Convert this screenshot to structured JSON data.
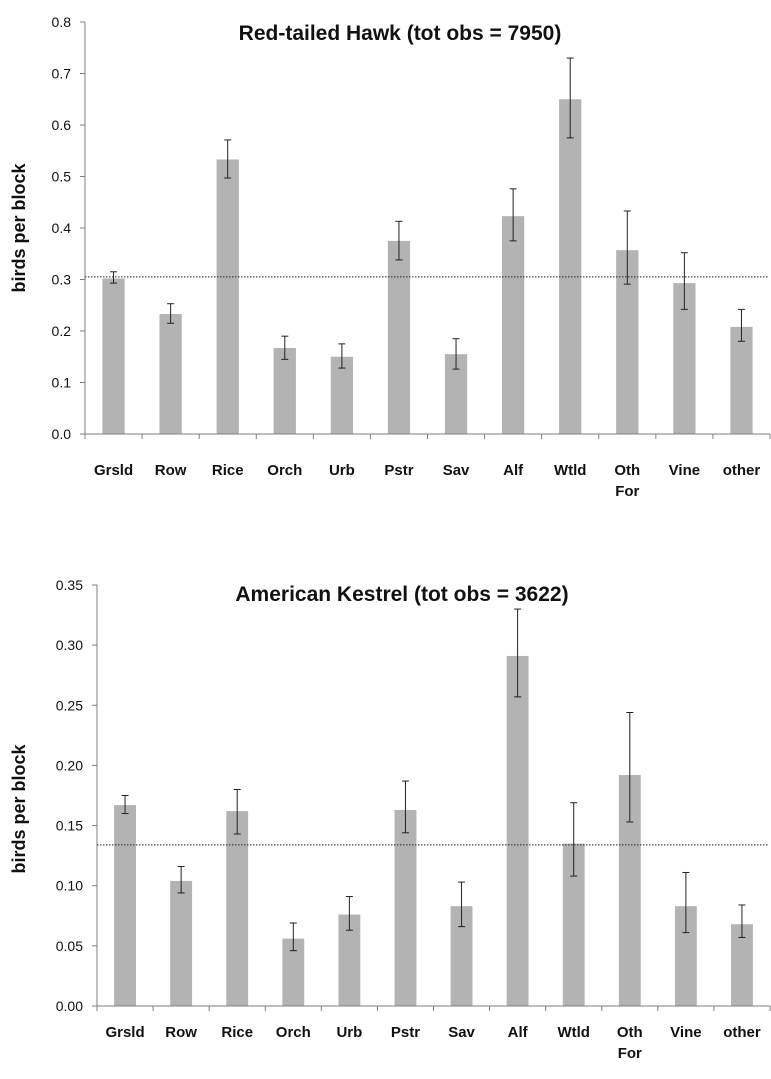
{
  "colors": {
    "bar": "#b3b3b3",
    "axis": "#7f7f7f",
    "errorbar": "#222222",
    "refline": "#222222",
    "text": "#111111"
  },
  "chart_data": [
    {
      "type": "bar",
      "title": "Red-tailed Hawk (tot obs = 7950)",
      "xlabel": "",
      "ylabel": "birds per block",
      "categories": [
        "Grsld",
        "Row",
        "Rice",
        "Orch",
        "Urb",
        "Pstr",
        "Sav",
        "Alf",
        "Wtld",
        "Oth For",
        "Vine",
        "other"
      ],
      "category_lines": [
        [
          "Grsld"
        ],
        [
          "Row"
        ],
        [
          "Rice"
        ],
        [
          "Orch"
        ],
        [
          "Urb"
        ],
        [
          "Pstr"
        ],
        [
          "Sav"
        ],
        [
          "Alf"
        ],
        [
          "Wtld"
        ],
        [
          "Oth",
          "For"
        ],
        [
          "Vine"
        ],
        [
          "other"
        ]
      ],
      "values": [
        0.302,
        0.233,
        0.533,
        0.167,
        0.15,
        0.375,
        0.155,
        0.423,
        0.65,
        0.357,
        0.293,
        0.208
      ],
      "error_low": [
        0.293,
        0.215,
        0.497,
        0.145,
        0.128,
        0.338,
        0.126,
        0.375,
        0.575,
        0.291,
        0.242,
        0.18
      ],
      "error_high": [
        0.315,
        0.253,
        0.571,
        0.19,
        0.175,
        0.413,
        0.185,
        0.476,
        0.73,
        0.433,
        0.352,
        0.242
      ],
      "reference_line": 0.305,
      "ylim": [
        0,
        0.8
      ],
      "yticks": [
        "0.0",
        "0.1",
        "0.2",
        "0.3",
        "0.4",
        "0.5",
        "0.6",
        "0.7",
        "0.8"
      ],
      "grid": false,
      "legend": "none"
    },
    {
      "type": "bar",
      "title": "American Kestrel (tot obs = 3622)",
      "xlabel": "",
      "ylabel": "birds per block",
      "categories": [
        "Grsld",
        "Row",
        "Rice",
        "Orch",
        "Urb",
        "Pstr",
        "Sav",
        "Alf",
        "Wtld",
        "Oth For",
        "Vine",
        "other"
      ],
      "category_lines": [
        [
          "Grsld"
        ],
        [
          "Row"
        ],
        [
          "Rice"
        ],
        [
          "Orch"
        ],
        [
          "Urb"
        ],
        [
          "Pstr"
        ],
        [
          "Sav"
        ],
        [
          "Alf"
        ],
        [
          "Wtld"
        ],
        [
          "Oth",
          "For"
        ],
        [
          "Vine"
        ],
        [
          "other"
        ]
      ],
      "values": [
        0.167,
        0.104,
        0.162,
        0.056,
        0.076,
        0.163,
        0.083,
        0.291,
        0.135,
        0.192,
        0.083,
        0.068
      ],
      "error_low": [
        0.16,
        0.094,
        0.143,
        0.046,
        0.063,
        0.144,
        0.066,
        0.257,
        0.108,
        0.153,
        0.061,
        0.057
      ],
      "error_high": [
        0.175,
        0.116,
        0.18,
        0.069,
        0.091,
        0.187,
        0.103,
        0.33,
        0.169,
        0.244,
        0.111,
        0.084
      ],
      "reference_line": 0.134,
      "ylim": [
        0,
        0.35
      ],
      "yticks": [
        "0.00",
        "0.05",
        "0.10",
        "0.15",
        "0.20",
        "0.25",
        "0.30",
        "0.35"
      ],
      "grid": false,
      "legend": "none"
    }
  ]
}
